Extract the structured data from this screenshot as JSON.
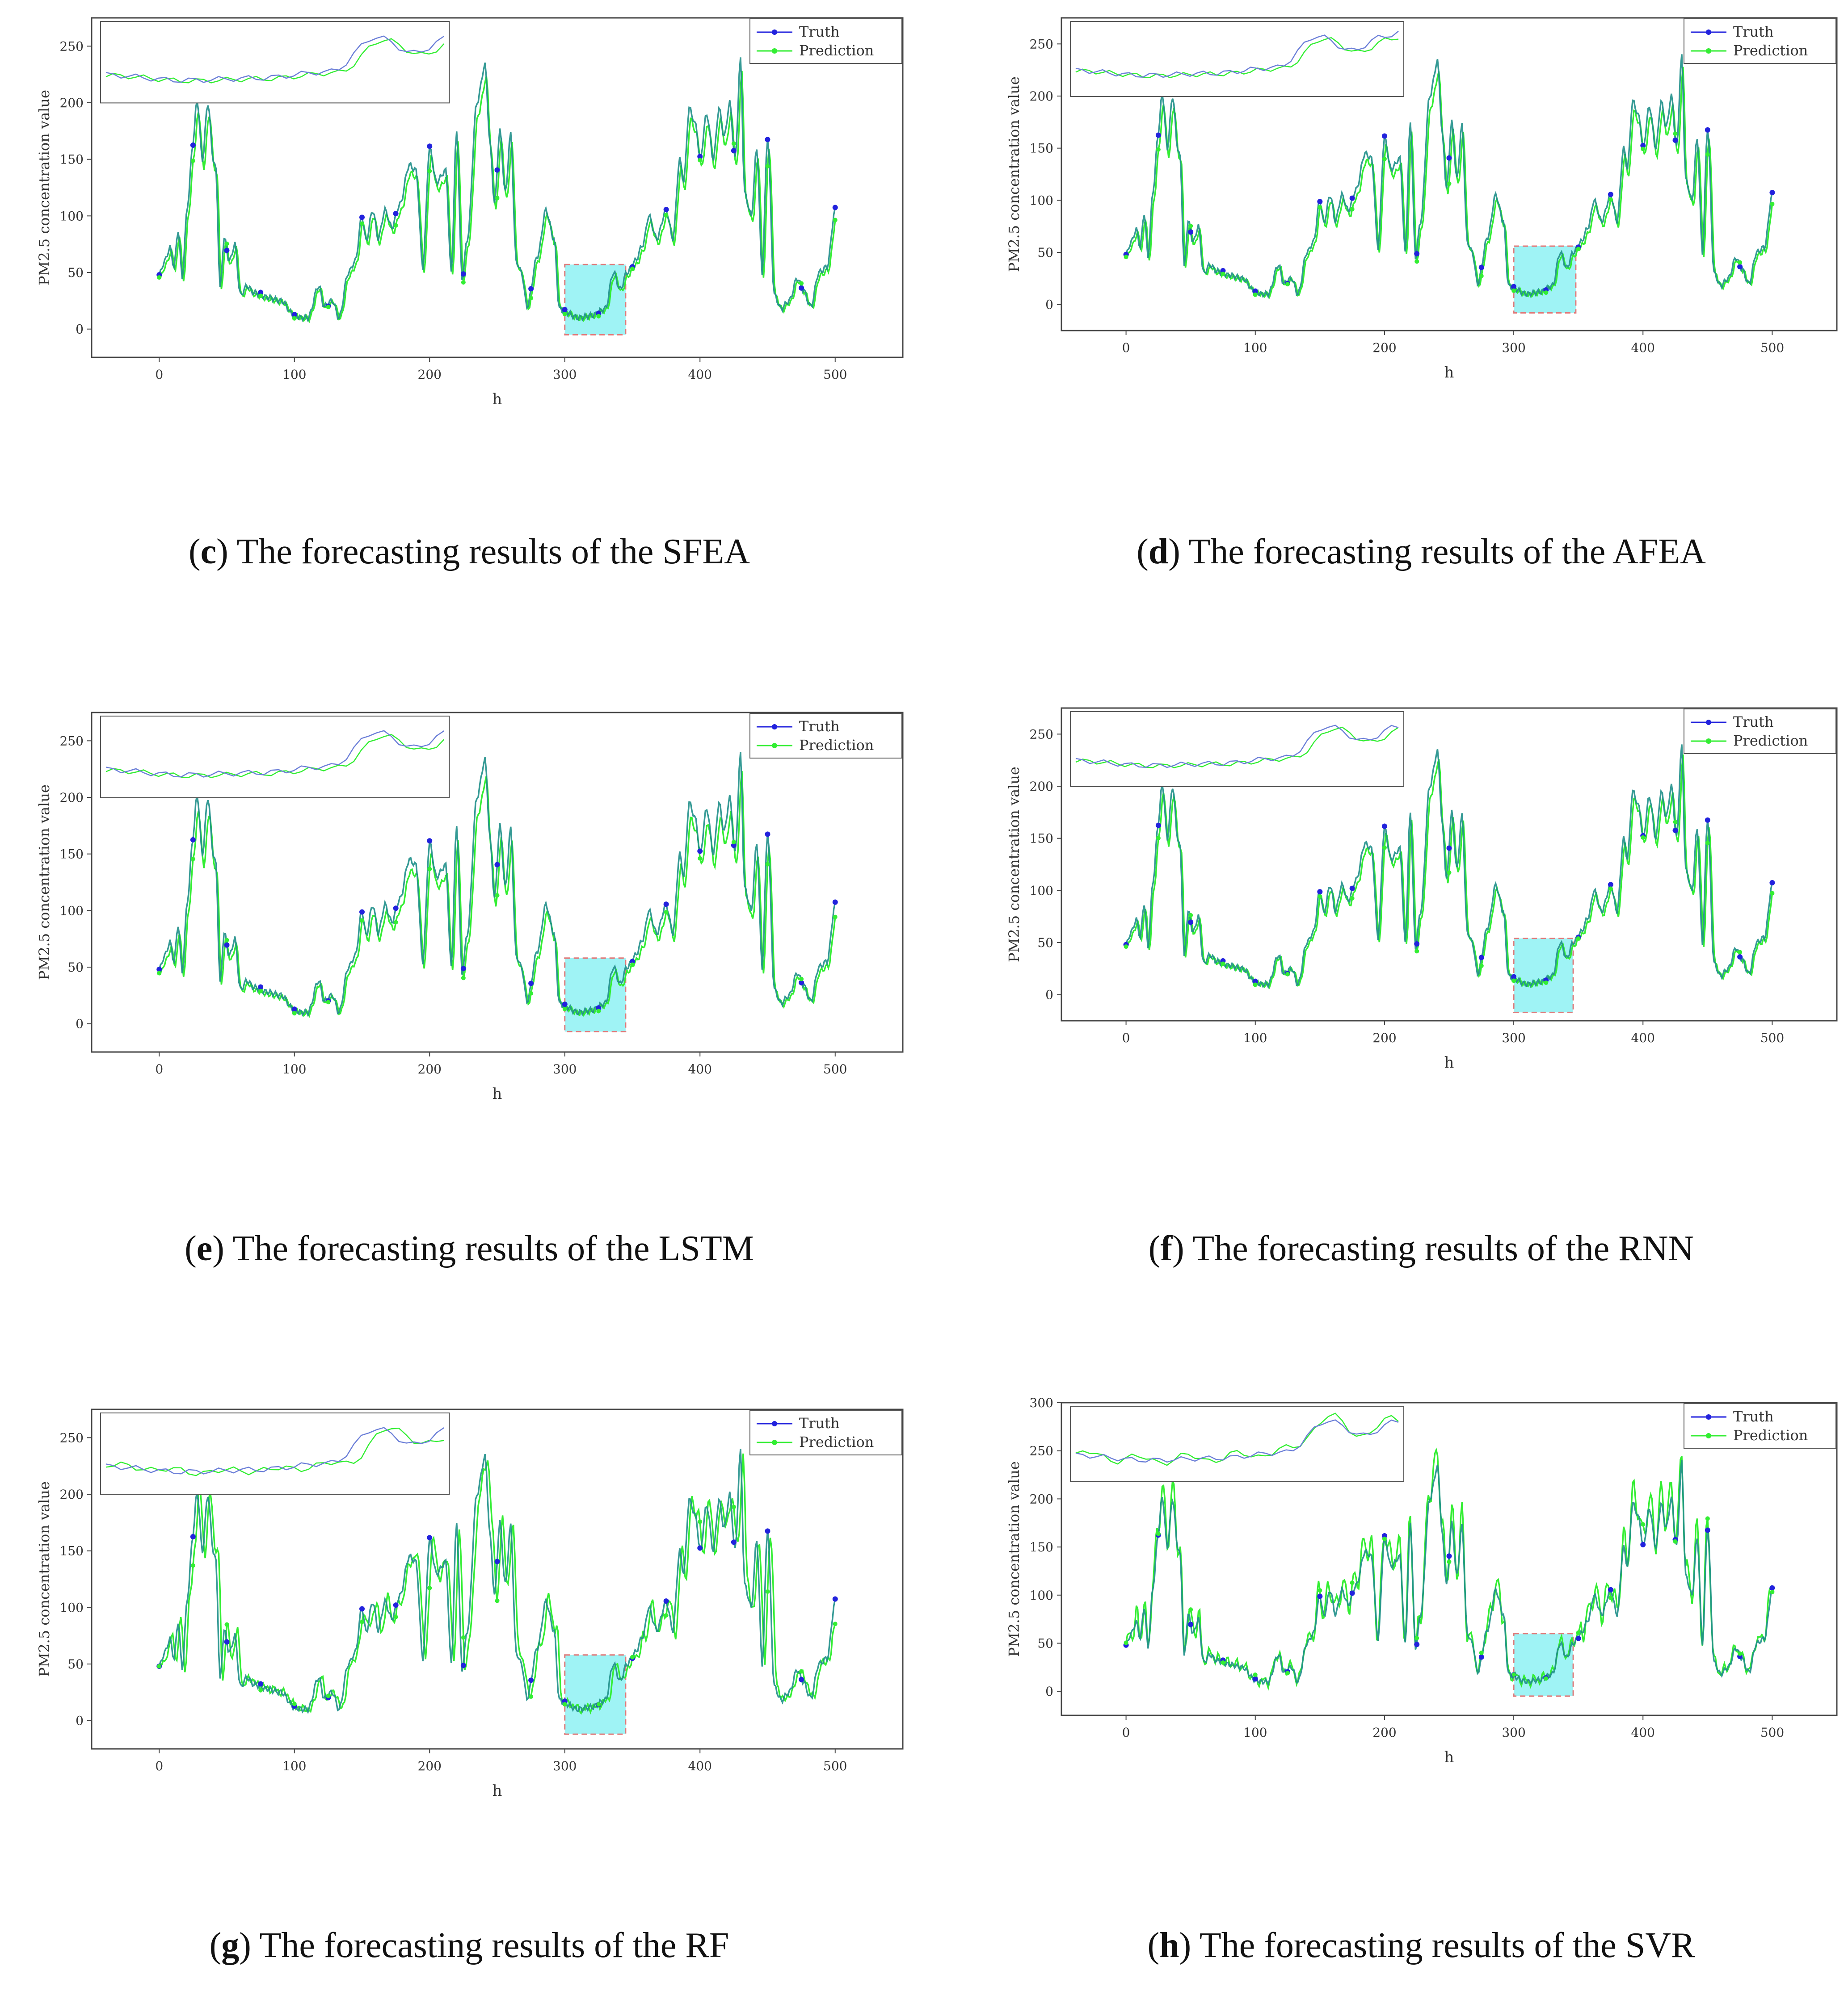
{
  "figure": {
    "legend_truth": "Truth",
    "legend_prediction": "Prediction",
    "colors": {
      "truth": "#2222dd",
      "prediction": "#33ee33",
      "overlap": "#1f8f8a",
      "highlight_fill": "#9ff3f5",
      "highlight_edge": "#e07a7a"
    }
  },
  "chart_data": [
    {
      "id": "c",
      "model": "SFEA",
      "type": "line",
      "caption_letter": "c",
      "caption_text": ") The forecasting results of the SFEA",
      "xlabel": "h",
      "ylabel": "PM2.5 concentration value",
      "xlim": [
        -50,
        550
      ],
      "ylim": [
        -25,
        275
      ],
      "xticks": [
        0,
        100,
        200,
        300,
        400,
        500
      ],
      "yticks": [
        0,
        50,
        100,
        150,
        200,
        250
      ],
      "highlight_x": [
        300,
        345
      ],
      "highlight_y": [
        -5,
        57
      ],
      "legend": [
        "Truth",
        "Prediction"
      ],
      "pred_shift": 1,
      "pred_gain": 0.95,
      "pred_noise": 0
    },
    {
      "id": "d",
      "model": "AFEA",
      "type": "line",
      "caption_letter": "d",
      "caption_text": ") The forecasting results of the AFEA",
      "xlabel": "h",
      "ylabel": "PM2.5 concentration value",
      "xlim": [
        -50,
        550
      ],
      "ylim": [
        -25,
        275
      ],
      "xticks": [
        0,
        100,
        200,
        300,
        400,
        500
      ],
      "yticks": [
        0,
        50,
        100,
        150,
        200,
        250
      ],
      "highlight_x": [
        300,
        348
      ],
      "highlight_y": [
        -8,
        56
      ],
      "legend": [
        "Truth",
        "Prediction"
      ],
      "pred_shift": 1,
      "pred_gain": 0.95,
      "pred_noise": 0
    },
    {
      "id": "e",
      "model": "LSTM",
      "type": "line",
      "caption_letter": "e",
      "caption_text": ") The forecasting results of the LSTM",
      "xlabel": "h",
      "ylabel": "PM2.5 concentration value",
      "xlim": [
        -50,
        550
      ],
      "ylim": [
        -25,
        275
      ],
      "xticks": [
        0,
        100,
        200,
        300,
        400,
        500
      ],
      "yticks": [
        0,
        50,
        100,
        150,
        200,
        250
      ],
      "highlight_x": [
        300,
        345
      ],
      "highlight_y": [
        -7,
        58
      ],
      "legend": [
        "Truth",
        "Prediction"
      ],
      "pred_shift": 1,
      "pred_gain": 0.93,
      "pred_noise": 0
    },
    {
      "id": "f",
      "model": "RNN",
      "type": "line",
      "caption_letter": "f",
      "caption_text": ") The forecasting results of the RNN",
      "xlabel": "h",
      "ylabel": "PM2.5 concentration value",
      "xlim": [
        -50,
        550
      ],
      "ylim": [
        -25,
        275
      ],
      "xticks": [
        0,
        100,
        200,
        300,
        400,
        500
      ],
      "yticks": [
        0,
        50,
        100,
        150,
        200,
        250
      ],
      "highlight_x": [
        300,
        346
      ],
      "highlight_y": [
        -17,
        54
      ],
      "legend": [
        "Truth",
        "Prediction"
      ],
      "pred_shift": 1,
      "pred_gain": 0.96,
      "pred_noise": 0
    },
    {
      "id": "g",
      "model": "RF",
      "type": "line",
      "caption_letter": "g",
      "caption_text": ") The forecasting results of the RF",
      "xlabel": "h",
      "ylabel": "PM2.5 concentration value",
      "xlim": [
        -50,
        550
      ],
      "ylim": [
        -25,
        275
      ],
      "xticks": [
        0,
        100,
        200,
        300,
        400,
        500
      ],
      "yticks": [
        0,
        50,
        100,
        150,
        200,
        250
      ],
      "highlight_x": [
        300,
        345
      ],
      "highlight_y": [
        -12,
        58
      ],
      "legend": [
        "Truth",
        "Prediction"
      ],
      "pred_shift": 2,
      "pred_gain": 1.0,
      "pred_noise": 6
    },
    {
      "id": "h",
      "model": "SVR",
      "type": "line",
      "caption_letter": "h",
      "caption_text": ") The forecasting results of the SVR",
      "xlabel": "h",
      "ylabel": "PM2.5 concentration value",
      "xlim": [
        -50,
        550
      ],
      "ylim": [
        -25,
        300
      ],
      "xticks": [
        0,
        100,
        200,
        300,
        400,
        500
      ],
      "yticks": [
        0,
        50,
        100,
        150,
        200,
        250,
        300
      ],
      "highlight_x": [
        300,
        346
      ],
      "highlight_y": [
        -5,
        60
      ],
      "legend": [
        "Truth",
        "Prediction"
      ],
      "pred_shift": 0,
      "pred_gain": 1.05,
      "pred_noise": 14
    }
  ],
  "truth_keypoints": [
    [
      0,
      48
    ],
    [
      4,
      60
    ],
    [
      8,
      72
    ],
    [
      11,
      55
    ],
    [
      14,
      88
    ],
    [
      17,
      46
    ],
    [
      21,
      110
    ],
    [
      25,
      165
    ],
    [
      28,
      203
    ],
    [
      32,
      150
    ],
    [
      36,
      200
    ],
    [
      40,
      150
    ],
    [
      42,
      140
    ],
    [
      45,
      35
    ],
    [
      48,
      80
    ],
    [
      52,
      60
    ],
    [
      56,
      75
    ],
    [
      60,
      30
    ],
    [
      65,
      38
    ],
    [
      70,
      32
    ],
    [
      80,
      28
    ],
    [
      90,
      25
    ],
    [
      100,
      12
    ],
    [
      105,
      10
    ],
    [
      110,
      10
    ],
    [
      118,
      38
    ],
    [
      122,
      20
    ],
    [
      128,
      25
    ],
    [
      133,
      10
    ],
    [
      140,
      50
    ],
    [
      145,
      60
    ],
    [
      150,
      100
    ],
    [
      153,
      78
    ],
    [
      158,
      105
    ],
    [
      162,
      80
    ],
    [
      167,
      105
    ],
    [
      172,
      90
    ],
    [
      178,
      110
    ],
    [
      185,
      145
    ],
    [
      190,
      140
    ],
    [
      195,
      55
    ],
    [
      200,
      160
    ],
    [
      205,
      130
    ],
    [
      212,
      140
    ],
    [
      216,
      50
    ],
    [
      220,
      175
    ],
    [
      224,
      45
    ],
    [
      228,
      80
    ],
    [
      235,
      200
    ],
    [
      241,
      233
    ],
    [
      245,
      160
    ],
    [
      248,
      110
    ],
    [
      252,
      175
    ],
    [
      256,
      120
    ],
    [
      260,
      172
    ],
    [
      264,
      60
    ],
    [
      268,
      50
    ],
    [
      272,
      20
    ],
    [
      280,
      65
    ],
    [
      286,
      105
    ],
    [
      292,
      80
    ],
    [
      296,
      18
    ],
    [
      300,
      15
    ],
    [
      310,
      10
    ],
    [
      320,
      12
    ],
    [
      330,
      18
    ],
    [
      336,
      50
    ],
    [
      341,
      35
    ],
    [
      346,
      50
    ],
    [
      352,
      60
    ],
    [
      358,
      75
    ],
    [
      362,
      100
    ],
    [
      368,
      80
    ],
    [
      375,
      105
    ],
    [
      380,
      80
    ],
    [
      385,
      150
    ],
    [
      388,
      130
    ],
    [
      392,
      195
    ],
    [
      397,
      180
    ],
    [
      400,
      150
    ],
    [
      405,
      190
    ],
    [
      410,
      150
    ],
    [
      414,
      195
    ],
    [
      418,
      170
    ],
    [
      422,
      200
    ],
    [
      426,
      150
    ],
    [
      430,
      238
    ],
    [
      433,
      120
    ],
    [
      438,
      100
    ],
    [
      442,
      160
    ],
    [
      446,
      50
    ],
    [
      450,
      170
    ],
    [
      455,
      30
    ],
    [
      460,
      18
    ],
    [
      466,
      25
    ],
    [
      472,
      45
    ],
    [
      476,
      35
    ],
    [
      482,
      20
    ],
    [
      488,
      50
    ],
    [
      494,
      55
    ],
    [
      500,
      105
    ]
  ]
}
